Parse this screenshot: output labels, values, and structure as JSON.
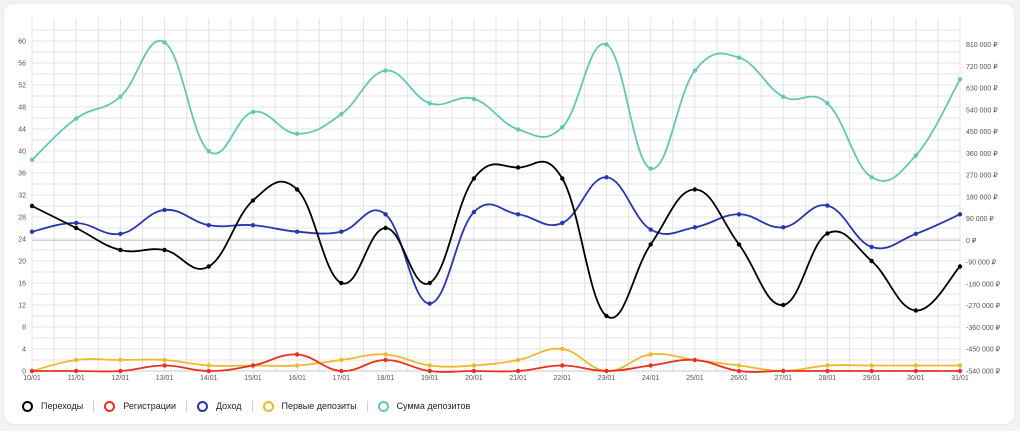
{
  "chart_data": {
    "type": "line",
    "categories": [
      "10/01",
      "11/01",
      "12/01",
      "13/01",
      "14/01",
      "15/01",
      "16/01",
      "17/01",
      "18/01",
      "19/01",
      "20/01",
      "21/01",
      "22/01",
      "23/01",
      "24/01",
      "25/01",
      "26/01",
      "27/01",
      "28/01",
      "29/01",
      "30/01",
      "31/01"
    ],
    "y_left": {
      "min": 0,
      "max": 62,
      "ticks": [
        0,
        4,
        8,
        12,
        16,
        20,
        24,
        28,
        32,
        36,
        40,
        44,
        48,
        52,
        56,
        60
      ]
    },
    "y_right": {
      "min": -540000,
      "max": 870000,
      "ticks": [
        -540000,
        -450000,
        -360000,
        -270000,
        -180000,
        -90000,
        0,
        90000,
        180000,
        270000,
        360000,
        450000,
        540000,
        630000,
        720000,
        810000
      ],
      "tick_labels": [
        "-540 000 ₽",
        "-450 000 ₽",
        "-360 000 ₽",
        "-270 000 ₽",
        "-180 000 ₽",
        "-90 000 ₽",
        "0 ₽",
        "90 000 ₽",
        "180 000 ₽",
        "270 000 ₽",
        "360 000 ₽",
        "450 000 ₽",
        "540 000 ₽",
        "630 000 ₽",
        "720 000 ₽",
        "810 000 ₽"
      ]
    },
    "grid": true,
    "legend_position": "bottom-left",
    "series": [
      {
        "name": "Переходы",
        "axis": "left",
        "color": "#000000",
        "values": [
          30,
          26,
          22,
          22,
          19,
          31,
          33,
          16,
          26,
          16,
          35,
          37,
          35,
          10,
          23,
          33,
          23,
          12,
          25,
          20,
          11,
          19
        ]
      },
      {
        "name": "Регистрации",
        "axis": "left",
        "color": "#e8321f",
        "values": [
          0,
          0,
          0,
          1,
          0,
          1,
          3,
          0,
          2,
          0,
          0,
          0,
          1,
          0,
          1,
          2,
          0,
          0,
          0,
          0,
          0,
          0
        ]
      },
      {
        "name": "Доход",
        "axis": "right",
        "color": "#2a36b1",
        "values": [
          36000,
          72000,
          27000,
          126000,
          63000,
          63000,
          36000,
          36000,
          108000,
          -261000,
          117000,
          108000,
          72000,
          261000,
          45000,
          54000,
          108000,
          54000,
          144000,
          -27000,
          27000,
          108000
        ]
      },
      {
        "name": "Первые депозиты",
        "axis": "left",
        "color": "#f0b72f",
        "values": [
          0,
          2,
          2,
          2,
          1,
          1,
          1,
          2,
          3,
          1,
          1,
          2,
          4,
          0,
          3,
          2,
          1,
          0,
          1,
          1,
          1,
          1
        ]
      },
      {
        "name": "Сумма депозитов",
        "axis": "right",
        "color": "#62c8b3",
        "values": [
          333000,
          504000,
          594000,
          819000,
          369000,
          531000,
          441000,
          522000,
          702000,
          567000,
          585000,
          459000,
          468000,
          810000,
          297000,
          702000,
          756000,
          594000,
          567000,
          261000,
          351000,
          666000
        ]
      }
    ]
  },
  "legend": [
    {
      "label": "Переходы",
      "color": "#000000"
    },
    {
      "label": "Регистрации",
      "color": "#e8321f"
    },
    {
      "label": "Доход",
      "color": "#2a36b1"
    },
    {
      "label": "Первые депозиты",
      "color": "#f0b72f"
    },
    {
      "label": "Сумма депозитов",
      "color": "#62c8b3"
    }
  ]
}
